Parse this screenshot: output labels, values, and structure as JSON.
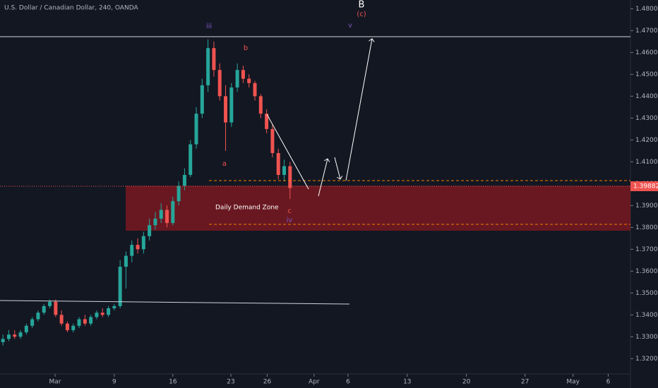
{
  "chart_data": {
    "type": "candlestick",
    "title": "U.S. Dollar / Canadian Dollar, 240, OANDA",
    "up_color": "#26a69a",
    "down_color": "#ef5350",
    "open": [
      1.3275,
      1.329,
      1.331,
      1.33,
      1.332,
      1.335,
      1.338,
      1.341,
      1.344,
      1.346,
      1.34,
      1.336,
      1.333,
      1.335,
      1.338,
      1.336,
      1.339,
      1.341,
      1.34,
      1.343,
      1.344,
      1.362,
      1.367,
      1.372,
      1.37,
      1.376,
      1.381,
      1.384,
      1.388,
      1.382,
      1.392,
      1.399,
      1.404,
      1.418,
      1.432,
      1.445,
      1.462,
      1.452,
      1.44,
      1.428,
      1.444,
      1.452,
      1.448,
      1.446,
      1.44,
      1.432,
      1.425,
      1.414,
      1.404,
      1.408
    ],
    "high": [
      1.331,
      1.333,
      1.333,
      1.333,
      1.336,
      1.339,
      1.342,
      1.345,
      1.347,
      1.347,
      1.342,
      1.337,
      1.336,
      1.339,
      1.34,
      1.34,
      1.342,
      1.343,
      1.344,
      1.345,
      1.365,
      1.369,
      1.374,
      1.375,
      1.378,
      1.384,
      1.387,
      1.391,
      1.39,
      1.394,
      1.401,
      1.407,
      1.42,
      1.435,
      1.448,
      1.466,
      1.465,
      1.455,
      1.445,
      1.446,
      1.455,
      1.454,
      1.45,
      1.447,
      1.441,
      1.434,
      1.427,
      1.416,
      1.411,
      1.41
    ],
    "low": [
      1.326,
      1.328,
      1.329,
      1.329,
      1.331,
      1.334,
      1.337,
      1.34,
      1.343,
      1.339,
      1.335,
      1.332,
      1.332,
      1.334,
      1.335,
      1.335,
      1.338,
      1.339,
      1.339,
      1.342,
      1.343,
      1.352,
      1.364,
      1.368,
      1.368,
      1.374,
      1.379,
      1.382,
      1.38,
      1.381,
      1.39,
      1.397,
      1.403,
      1.416,
      1.43,
      1.442,
      1.449,
      1.438,
      1.415,
      1.426,
      1.442,
      1.446,
      1.444,
      1.438,
      1.43,
      1.423,
      1.412,
      1.402,
      1.401,
      1.393
    ],
    "close": [
      1.329,
      1.331,
      1.33,
      1.332,
      1.335,
      1.338,
      1.341,
      1.344,
      1.346,
      1.34,
      1.336,
      1.333,
      1.335,
      1.338,
      1.336,
      1.339,
      1.341,
      1.34,
      1.343,
      1.344,
      1.362,
      1.367,
      1.372,
      1.37,
      1.376,
      1.381,
      1.384,
      1.388,
      1.382,
      1.392,
      1.399,
      1.404,
      1.418,
      1.432,
      1.445,
      1.462,
      1.452,
      1.44,
      1.428,
      1.444,
      1.452,
      1.448,
      1.446,
      1.44,
      1.432,
      1.425,
      1.414,
      1.404,
      1.408,
      1.398
    ],
    "xlim": [
      0,
      107.6
    ],
    "xticks": [
      {
        "value": 9.4,
        "label": "Mar"
      },
      {
        "value": 19.5,
        "label": "9"
      },
      {
        "value": 29.5,
        "label": "16"
      },
      {
        "value": 39.4,
        "label": "23"
      },
      {
        "value": 45.6,
        "label": "26"
      },
      {
        "value": 53.6,
        "label": "Apr"
      },
      {
        "value": 59.4,
        "label": "6"
      },
      {
        "value": 69.5,
        "label": "13"
      },
      {
        "value": 79.6,
        "label": "20"
      },
      {
        "value": 89.6,
        "label": "27"
      },
      {
        "value": 97.8,
        "label": "May"
      },
      {
        "value": 103.8,
        "label": "6"
      }
    ],
    "ylim": [
      1.313,
      1.484
    ],
    "yticks": [
      {
        "value": 1.32,
        "label": "1.32000"
      },
      {
        "value": 1.33,
        "label": "1.33000"
      },
      {
        "value": 1.34,
        "label": "1.34000"
      },
      {
        "value": 1.35,
        "label": "1.35000"
      },
      {
        "value": 1.36,
        "label": "1.36000"
      },
      {
        "value": 1.37,
        "label": "1.37000"
      },
      {
        "value": 1.38,
        "label": "1.38000"
      },
      {
        "value": 1.39,
        "label": "1.39000"
      },
      {
        "value": 1.4,
        "label": "1.40000"
      },
      {
        "value": 1.41,
        "label": "1.41000"
      },
      {
        "value": 1.42,
        "label": "1.42000"
      },
      {
        "value": 1.43,
        "label": "1.43000"
      },
      {
        "value": 1.44,
        "label": "1.44000"
      },
      {
        "value": 1.45,
        "label": "1.45000"
      },
      {
        "value": 1.46,
        "label": "1.46000"
      },
      {
        "value": 1.47,
        "label": "1.47000"
      },
      {
        "value": 1.48,
        "label": "1.48000"
      }
    ],
    "current_price": {
      "value": 1.39882,
      "label": "1.39882"
    },
    "demand_zone": {
      "label": "Daily Demand Zone",
      "range": [
        1.3785,
        1.399
      ]
    },
    "annotations": [
      "iii",
      "b",
      "a",
      "c",
      "iv",
      "v",
      "B",
      "(c)"
    ]
  }
}
